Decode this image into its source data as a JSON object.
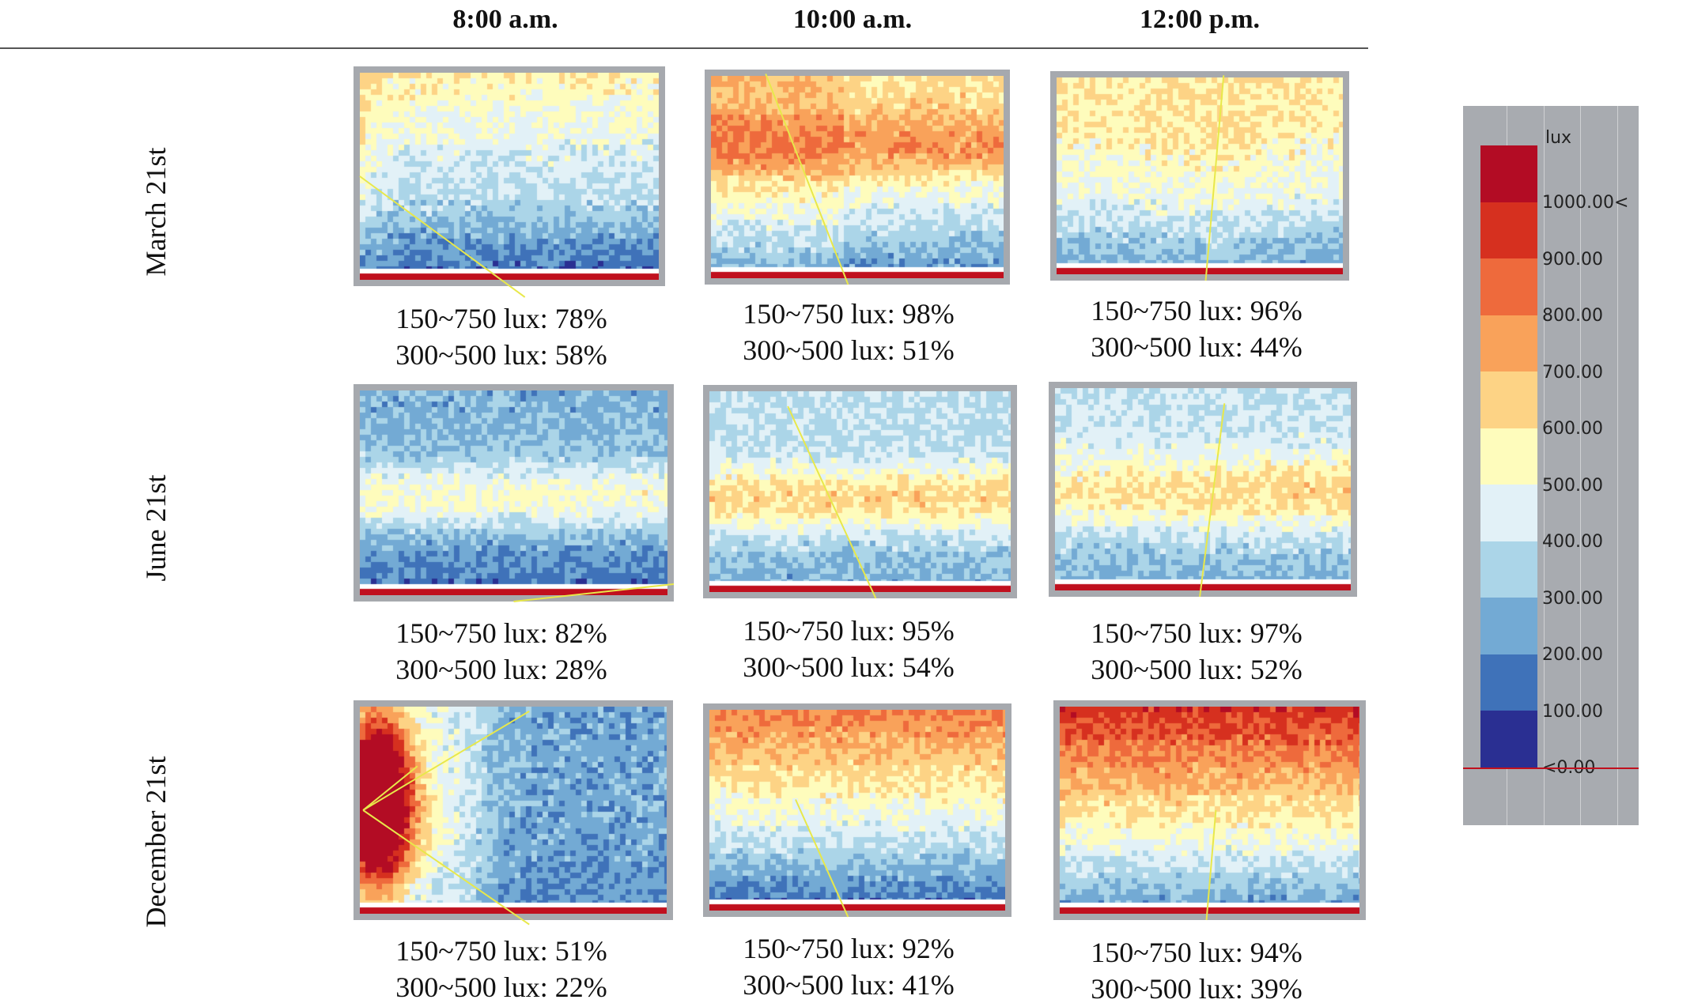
{
  "columns": [
    "8:00 a.m.",
    "10:00 a.m.",
    "12:00 p.m."
  ],
  "rows": [
    "March 21st",
    "June 21st",
    "December 21st"
  ],
  "chart_data": {
    "type": "heatmap",
    "unit": "lux",
    "panels": [
      {
        "date": "March 21st",
        "time": "8:00 a.m.",
        "pattern": "bright-top",
        "stats": [
          "150~750 lux: 78%",
          "300~500 lux: 58%"
        ]
      },
      {
        "date": "March 21st",
        "time": "10:00 a.m.",
        "pattern": "warm-upper",
        "stats": [
          "150~750 lux: 98%",
          "300~500 lux: 51%"
        ]
      },
      {
        "date": "March 21st",
        "time": "12:00 p.m.",
        "pattern": "light-upper",
        "stats": [
          "150~750 lux: 96%",
          "300~500 lux: 44%"
        ]
      },
      {
        "date": "June 21st",
        "time": "8:00 a.m.",
        "pattern": "mid-band",
        "stats": [
          "150~750 lux: 82%",
          "300~500 lux: 28%"
        ]
      },
      {
        "date": "June 21st",
        "time": "10:00 a.m.",
        "pattern": "mid-yellow",
        "stats": [
          "150~750 lux: 95%",
          "300~500 lux: 54%"
        ]
      },
      {
        "date": "June 21st",
        "time": "12:00 p.m.",
        "pattern": "mid-yellow-right",
        "stats": [
          "150~750 lux: 97%",
          "300~500 lux: 52%"
        ]
      },
      {
        "date": "December 21st",
        "time": "8:00 a.m.",
        "pattern": "hot-left",
        "stats": [
          "150~750 lux: 51%",
          "300~500 lux: 22%"
        ]
      },
      {
        "date": "December 21st",
        "time": "10:00 a.m.",
        "pattern": "warm-top",
        "stats": [
          "150~750 lux: 92%",
          "300~500 lux: 41%"
        ]
      },
      {
        "date": "December 21st",
        "time": "12:00 p.m.",
        "pattern": "hot-top",
        "stats": [
          "150~750 lux: 94%",
          "300~500 lux: 39%"
        ]
      }
    ],
    "legend": {
      "unit_label": "lux",
      "ticks": [
        "1000.00<",
        "900.00",
        "800.00",
        "700.00",
        "600.00",
        "500.00",
        "400.00",
        "300.00",
        "200.00",
        "100.00",
        "<0.00"
      ],
      "colors": [
        "#b30c24",
        "#d6301f",
        "#ee6a3c",
        "#f9a25a",
        "#fdd385",
        "#fefcbc",
        "#e2f1f7",
        "#abd5e8",
        "#73aad4",
        "#3f72b9",
        "#2a2f92"
      ]
    }
  }
}
